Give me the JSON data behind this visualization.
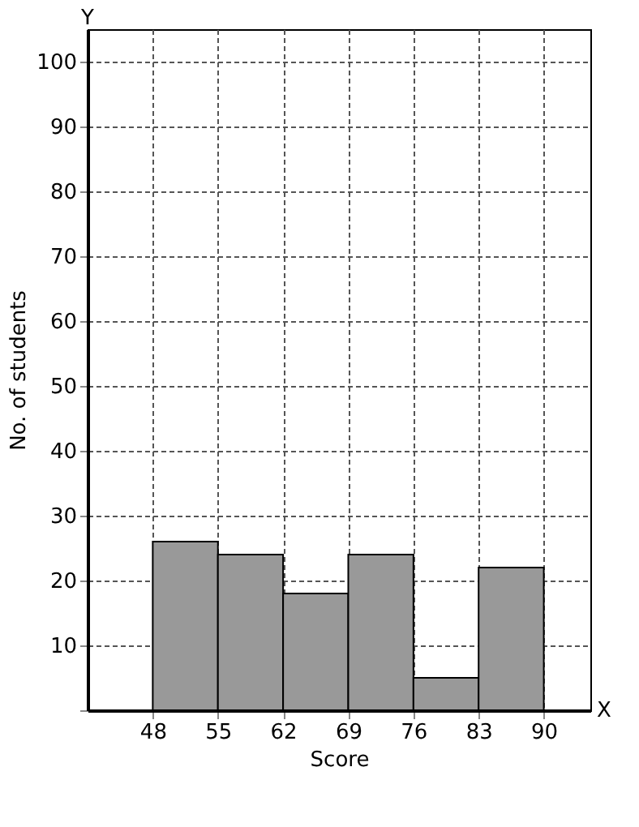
{
  "chart_data": {
    "type": "histogram",
    "xlabel": "Score",
    "ylabel": "No. of students",
    "bins": [
      48,
      55,
      62,
      69,
      76,
      83,
      90
    ],
    "values": [
      26,
      24,
      18,
      24,
      5,
      22
    ],
    "color": "#999999",
    "xlim": [
      41,
      95
    ],
    "ylim": [
      0,
      105
    ],
    "xticks": [
      48,
      55,
      62,
      69,
      76,
      83,
      90
    ],
    "yticks": [
      {
        "value": 0,
        "label": null
      },
      10,
      20,
      30,
      40,
      50,
      60,
      70,
      80,
      90,
      100
    ],
    "grid": true,
    "annotations": [
      "X",
      "Y"
    ]
  }
}
